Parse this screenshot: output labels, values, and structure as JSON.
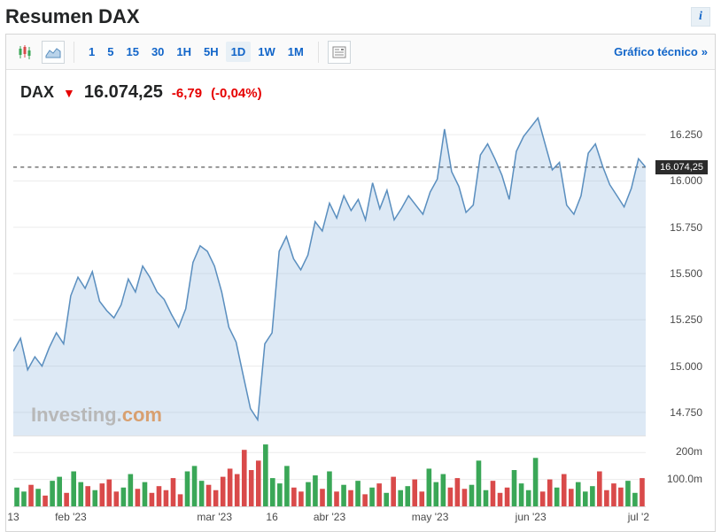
{
  "header": {
    "title": "Resumen DAX",
    "info_tooltip": "i"
  },
  "toolbar": {
    "timeframes": [
      "1",
      "5",
      "15",
      "30",
      "1H",
      "5H",
      "1D",
      "1W",
      "1M"
    ],
    "active_timeframe": "1D",
    "tech_link": "Gráfico técnico"
  },
  "quote": {
    "symbol": "DAX",
    "direction": "down",
    "last": "16.074,25",
    "change": "-6,79",
    "change_pct": "(-0,04%)",
    "change_color": "#e60000"
  },
  "price_chart": {
    "type": "area",
    "line_color": "#5b8fbf",
    "fill_color": "rgba(100,155,210,0.22)",
    "background": "#ffffff",
    "grid_color": "#ececec",
    "ylim": [
      14625,
      16375
    ],
    "yticks": [
      14750,
      15000,
      15250,
      15500,
      15750,
      16000,
      16250
    ],
    "ytick_labels": [
      "14.750",
      "15.000",
      "15.250",
      "15.500",
      "15.750",
      "16.000",
      "16.250"
    ],
    "current_value": 16074.25,
    "current_label": "16.074,25",
    "series": [
      15080,
      15150,
      14980,
      15050,
      15000,
      15100,
      15180,
      15120,
      15380,
      15480,
      15420,
      15510,
      15350,
      15300,
      15260,
      15330,
      15470,
      15400,
      15540,
      15480,
      15400,
      15360,
      15280,
      15210,
      15310,
      15560,
      15650,
      15620,
      15540,
      15400,
      15210,
      15130,
      14950,
      14770,
      14710,
      15120,
      15180,
      15620,
      15700,
      15580,
      15520,
      15600,
      15780,
      15730,
      15880,
      15800,
      15920,
      15840,
      15900,
      15790,
      15990,
      15850,
      15950,
      15790,
      15850,
      15920,
      15870,
      15820,
      15940,
      16010,
      16280,
      16050,
      15970,
      15830,
      15870,
      16140,
      16200,
      16120,
      16030,
      15900,
      16160,
      16240,
      16290,
      16340,
      16200,
      16060,
      16100,
      15870,
      15820,
      15920,
      16150,
      16200,
      16080,
      15980,
      15920,
      15860,
      15960,
      16120,
      16074
    ],
    "watermark": "Investing.com"
  },
  "xaxis": {
    "n": 89,
    "ticks": [
      {
        "i": 0,
        "label": "13"
      },
      {
        "i": 8,
        "label": "feb '23"
      },
      {
        "i": 28,
        "label": "mar '23"
      },
      {
        "i": 36,
        "label": "16"
      },
      {
        "i": 44,
        "label": "abr '23"
      },
      {
        "i": 58,
        "label": "may '23"
      },
      {
        "i": 72,
        "label": "jun '23"
      },
      {
        "i": 87,
        "label": "jul '2"
      }
    ]
  },
  "volume_chart": {
    "type": "bar",
    "ylim": [
      0,
      260
    ],
    "yticks": [
      100,
      200
    ],
    "ytick_labels": [
      "100.0m",
      "200m"
    ],
    "up_color": "#3aa757",
    "down_color": "#d94a4a",
    "values": [
      70,
      55,
      80,
      65,
      40,
      95,
      110,
      50,
      130,
      90,
      75,
      60,
      85,
      100,
      55,
      70,
      120,
      65,
      90,
      50,
      75,
      60,
      105,
      45,
      130,
      150,
      95,
      80,
      60,
      110,
      140,
      120,
      210,
      135,
      170,
      230,
      105,
      85,
      150,
      70,
      55,
      90,
      115,
      65,
      130,
      55,
      80,
      60,
      95,
      45,
      70,
      85,
      50,
      110,
      60,
      75,
      100,
      55,
      140,
      90,
      120,
      70,
      105,
      65,
      80,
      170,
      60,
      95,
      50,
      70,
      135,
      85,
      60,
      180,
      55,
      100,
      70,
      120,
      65,
      90,
      55,
      75,
      130,
      60,
      85,
      70,
      95,
      50,
      105
    ],
    "dirs": [
      1,
      1,
      -1,
      1,
      -1,
      1,
      1,
      -1,
      1,
      1,
      -1,
      1,
      -1,
      -1,
      -1,
      1,
      1,
      -1,
      1,
      -1,
      -1,
      -1,
      -1,
      -1,
      1,
      1,
      1,
      -1,
      -1,
      -1,
      -1,
      -1,
      -1,
      -1,
      -1,
      1,
      1,
      1,
      1,
      -1,
      -1,
      1,
      1,
      -1,
      1,
      -1,
      1,
      -1,
      1,
      -1,
      1,
      -1,
      1,
      -1,
      1,
      1,
      -1,
      -1,
      1,
      1,
      1,
      -1,
      -1,
      -1,
      1,
      1,
      1,
      -1,
      -1,
      -1,
      1,
      1,
      1,
      1,
      -1,
      -1,
      1,
      -1,
      -1,
      1,
      1,
      1,
      -1,
      -1,
      -1,
      -1,
      1,
      1,
      -1
    ]
  },
  "colors": {
    "link": "#1165c9",
    "text": "#232526"
  }
}
